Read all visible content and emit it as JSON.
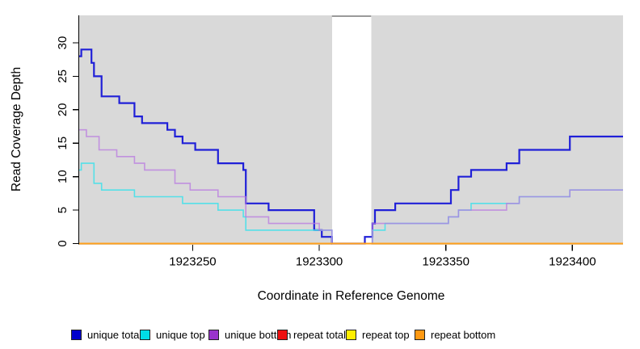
{
  "chart_data": {
    "type": "step-line",
    "title": "",
    "xlabel": "Coordinate in Reference Genome",
    "ylabel": "Read Coverage Depth",
    "xlim": [
      1923205,
      1923420
    ],
    "ylim": [
      0,
      34
    ],
    "x_ticks": [
      1923250,
      1923300,
      1923350,
      1923400
    ],
    "y_ticks": [
      0,
      5,
      10,
      15,
      20,
      25,
      30
    ],
    "grid": false,
    "plot_background": "#d9d9d9",
    "masked_region": {
      "start": 1923305,
      "end": 1923320.5,
      "fill": "#ffffff",
      "top_border": "#9a9a9a"
    },
    "series": [
      {
        "name": "unique total",
        "color": "#2020d8",
        "width": 2.2,
        "opacity": 1,
        "points": [
          [
            1923205,
            28
          ],
          [
            1923206,
            29
          ],
          [
            1923210,
            27
          ],
          [
            1923211,
            25
          ],
          [
            1923214,
            22
          ],
          [
            1923221,
            21
          ],
          [
            1923227,
            19
          ],
          [
            1923230,
            18
          ],
          [
            1923240,
            17
          ],
          [
            1923243,
            16
          ],
          [
            1923246,
            15
          ],
          [
            1923251,
            14
          ],
          [
            1923260,
            12
          ],
          [
            1923270,
            11
          ],
          [
            1923271,
            6
          ],
          [
            1923280,
            5
          ],
          [
            1923298,
            2
          ],
          [
            1923301,
            1
          ],
          [
            1923305,
            0
          ],
          [
            1923318,
            1
          ],
          [
            1923321,
            3
          ],
          [
            1923322,
            5
          ],
          [
            1923330,
            6
          ],
          [
            1923352,
            8
          ],
          [
            1923355,
            10
          ],
          [
            1923360,
            11
          ],
          [
            1923374,
            12
          ],
          [
            1923379,
            14
          ],
          [
            1923399,
            16
          ]
        ]
      },
      {
        "name": "unique top",
        "color": "#55e0e8",
        "width": 1.6,
        "opacity": 1,
        "points": [
          [
            1923205,
            11
          ],
          [
            1923206,
            12
          ],
          [
            1923211,
            9
          ],
          [
            1923214,
            8
          ],
          [
            1923227,
            7
          ],
          [
            1923246,
            6
          ],
          [
            1923260,
            5
          ],
          [
            1923270,
            4
          ],
          [
            1923271,
            2
          ],
          [
            1923305,
            0
          ],
          [
            1923321,
            2
          ],
          [
            1923326,
            3
          ],
          [
            1923351,
            4
          ],
          [
            1923355,
            5
          ],
          [
            1923360,
            6
          ],
          [
            1923379,
            7
          ],
          [
            1923399,
            8
          ]
        ]
      },
      {
        "name": "unique bottom",
        "color": "#b878e0",
        "width": 1.6,
        "opacity": 0.75,
        "points": [
          [
            1923205,
            17
          ],
          [
            1923208,
            16
          ],
          [
            1923213,
            14
          ],
          [
            1923220,
            13
          ],
          [
            1923227,
            12
          ],
          [
            1923231,
            11
          ],
          [
            1923243,
            9
          ],
          [
            1923249,
            8
          ],
          [
            1923260,
            7
          ],
          [
            1923271,
            4
          ],
          [
            1923280,
            3
          ],
          [
            1923300,
            2
          ],
          [
            1923305,
            0
          ],
          [
            1923321,
            3
          ],
          [
            1923351,
            4
          ],
          [
            1923355,
            5
          ],
          [
            1923374,
            6
          ],
          [
            1923379,
            7
          ],
          [
            1923399,
            8
          ]
        ]
      },
      {
        "name": "repeat total",
        "color": "#e01818",
        "width": 1.6,
        "opacity": 1,
        "points": [
          [
            1923205,
            0
          ]
        ]
      },
      {
        "name": "repeat top",
        "color": "#ffee33",
        "width": 1.6,
        "opacity": 1,
        "points": [
          [
            1923205,
            0
          ]
        ]
      },
      {
        "name": "repeat bottom",
        "color": "#ff9f1a",
        "width": 2,
        "opacity": 1,
        "points": [
          [
            1923205,
            0
          ]
        ]
      }
    ],
    "legend": [
      {
        "label": "unique total",
        "color": "#0000cc"
      },
      {
        "label": "unique top",
        "color": "#00dde6"
      },
      {
        "label": "unique bottom",
        "color": "#9933cc"
      },
      {
        "label": "repeat total",
        "color": "#ee1111"
      },
      {
        "label": "repeat top",
        "color": "#ffee00"
      },
      {
        "label": "repeat bottom",
        "color": "#ff9912"
      }
    ],
    "legend_position": "bottom"
  }
}
